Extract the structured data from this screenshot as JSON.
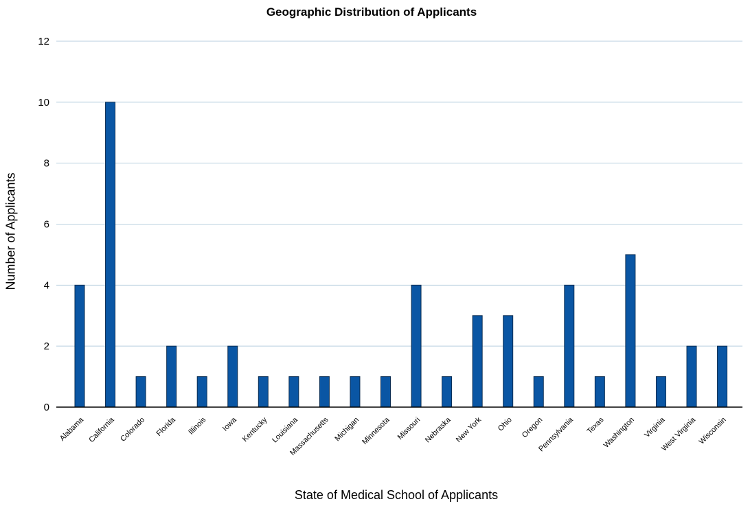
{
  "chart_data": {
    "type": "bar",
    "title": "Geographic Distribution of Applicants",
    "xlabel": "State of Medical School of Applicants",
    "ylabel": "Number of Applicants",
    "ylim": [
      0,
      12
    ],
    "yticks": [
      0,
      2,
      4,
      6,
      8,
      10,
      12
    ],
    "grid": true,
    "bar_color": "#0a56a4",
    "grid_color": "#b8cfdf",
    "categories": [
      "Alabama",
      "California",
      "Colorado",
      "Florida",
      "Illinois",
      "Iowa",
      "Kentucky",
      "Louisiana",
      "Massachusetts",
      "Michigan",
      "Minnesota",
      "Missouri",
      "Nebraska",
      "New York",
      "Ohio",
      "Oregon",
      "Pennsylvania",
      "Texas",
      "Washington",
      "Virginia",
      "West Virginia",
      "Wisconsin"
    ],
    "values": [
      4,
      10,
      1,
      2,
      1,
      2,
      1,
      1,
      1,
      1,
      1,
      4,
      1,
      3,
      3,
      1,
      4,
      1,
      5,
      1,
      2,
      2
    ]
  }
}
